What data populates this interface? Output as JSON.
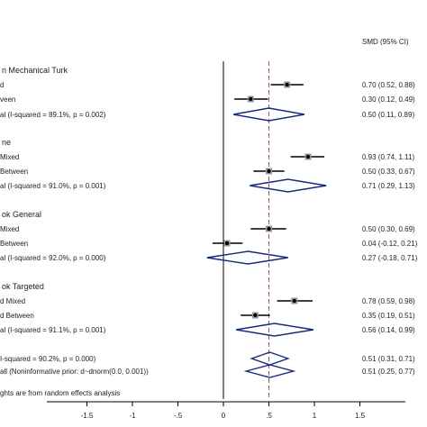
{
  "chart_data": {
    "type": "forest",
    "header": "SMD (95% CI)",
    "xlim": [
      -2,
      2
    ],
    "xticks": [
      -1.5,
      -1,
      -0.5,
      0,
      0.5,
      1,
      1.5
    ],
    "xtick_labels": [
      "-1.5",
      "-1",
      "-.5",
      "0",
      ".5",
      "1",
      "1.5"
    ],
    "reference_line": 0,
    "dashed_line": 0.5,
    "rows": [
      {
        "kind": "group",
        "label": "n Mechanical Turk"
      },
      {
        "kind": "study",
        "label": "d",
        "est": 0.7,
        "lo": 0.52,
        "hi": 0.88,
        "ci": "0.70 (0.52, 0.88)"
      },
      {
        "kind": "study",
        "label": "veen",
        "est": 0.3,
        "lo": 0.12,
        "hi": 0.49,
        "ci": "0.30 (0.12, 0.49)"
      },
      {
        "kind": "subtotal",
        "label": "al  (I-squared = 89.1%, p = 0.002)",
        "est": 0.5,
        "lo": 0.11,
        "hi": 0.89,
        "ci": "0.50 (0.11, 0.89)"
      },
      {
        "kind": "group",
        "label": "ne"
      },
      {
        "kind": "study",
        "label": "Mixed",
        "est": 0.93,
        "lo": 0.74,
        "hi": 1.11,
        "ci": "0.93 (0.74, 1.11)"
      },
      {
        "kind": "study",
        "label": "Between",
        "est": 0.5,
        "lo": 0.33,
        "hi": 0.67,
        "ci": "0.50 (0.33, 0.67)"
      },
      {
        "kind": "subtotal",
        "label": "al  (I-squared = 91.0%, p = 0.001)",
        "est": 0.71,
        "lo": 0.29,
        "hi": 1.13,
        "ci": "0.71 (0.29, 1.13)"
      },
      {
        "kind": "group",
        "label": "ok General"
      },
      {
        "kind": "study",
        "label": "Mixed",
        "est": 0.5,
        "lo": 0.3,
        "hi": 0.69,
        "ci": "0.50 (0.30, 0.69)"
      },
      {
        "kind": "study",
        "label": "Between",
        "est": 0.04,
        "lo": -0.12,
        "hi": 0.21,
        "ci": "0.04 (-0.12, 0.21)"
      },
      {
        "kind": "subtotal",
        "label": "al  (I-squared = 92.0%, p = 0.000)",
        "est": 0.27,
        "lo": -0.18,
        "hi": 0.71,
        "ci": "0.27 (-0.18, 0.71)"
      },
      {
        "kind": "group",
        "label": "ok Targeted"
      },
      {
        "kind": "study",
        "label": "d Mixed",
        "est": 0.78,
        "lo": 0.59,
        "hi": 0.98,
        "ci": "0.78 (0.59, 0.98)"
      },
      {
        "kind": "study",
        "label": "d Between",
        "est": 0.35,
        "lo": 0.19,
        "hi": 0.51,
        "ci": "0.35 (0.19, 0.51)"
      },
      {
        "kind": "subtotal",
        "label": "al  (I-squared = 91.1%, p = 0.001)",
        "est": 0.56,
        "lo": 0.14,
        "hi": 0.99,
        "ci": "0.56 (0.14, 0.99)"
      },
      {
        "kind": "overall",
        "label": "I-squared = 90.2%, p = 0.000)",
        "est": 0.51,
        "lo": 0.31,
        "hi": 0.71,
        "ci": "0.51 (0.31, 0.71)"
      },
      {
        "kind": "overall",
        "label": "all (Noninformative prior: d~dnorm(0.0, 0.001))",
        "est": 0.51,
        "lo": 0.25,
        "hi": 0.77,
        "ci": "0.51 (0.25, 0.77)"
      }
    ],
    "footnote": "ghts are from random effects analysis"
  }
}
